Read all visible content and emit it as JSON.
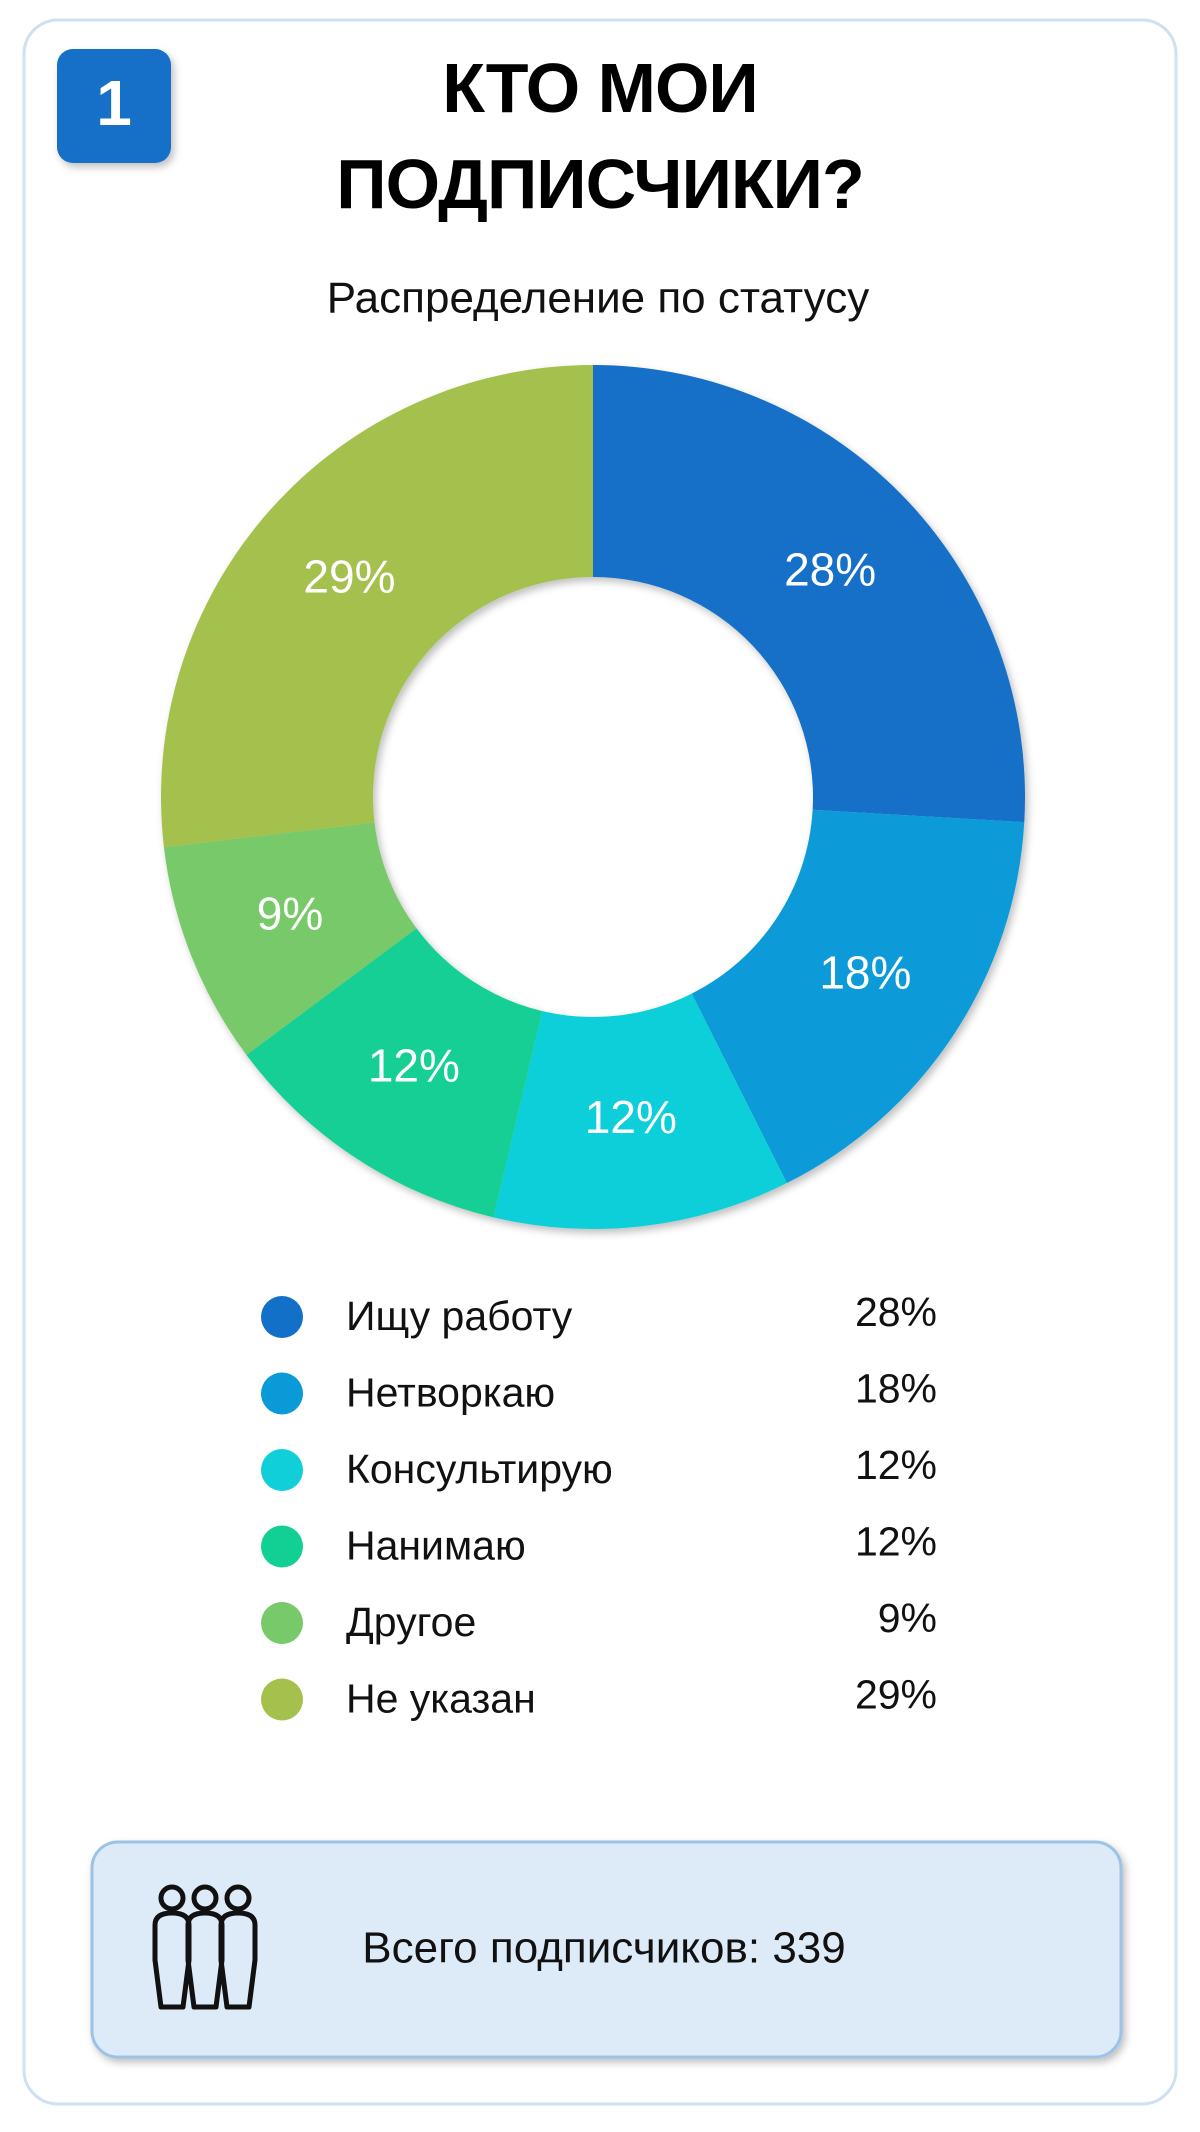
{
  "badge": "1",
  "footer": "Всего подписчиков: 339",
  "chart_data": {
    "type": "donut",
    "title": "КТО МОИ ПОДПИСЧИКИ?",
    "subtitle": "Распределение по статусу",
    "categories": [
      "Ищу работу",
      "Нетворкаю",
      "Консультирую",
      "Нанимаю",
      "Другое",
      "Не указан"
    ],
    "values": [
      28,
      18,
      12,
      12,
      9,
      29
    ],
    "value_labels": [
      "28%",
      "18%",
      "12%",
      "12%",
      "9%",
      "29%"
    ],
    "colors": [
      "#1270c8",
      "#0a9ad8",
      "#10cfd9",
      "#12cf94",
      "#78c96a",
      "#a5c14d"
    ]
  }
}
